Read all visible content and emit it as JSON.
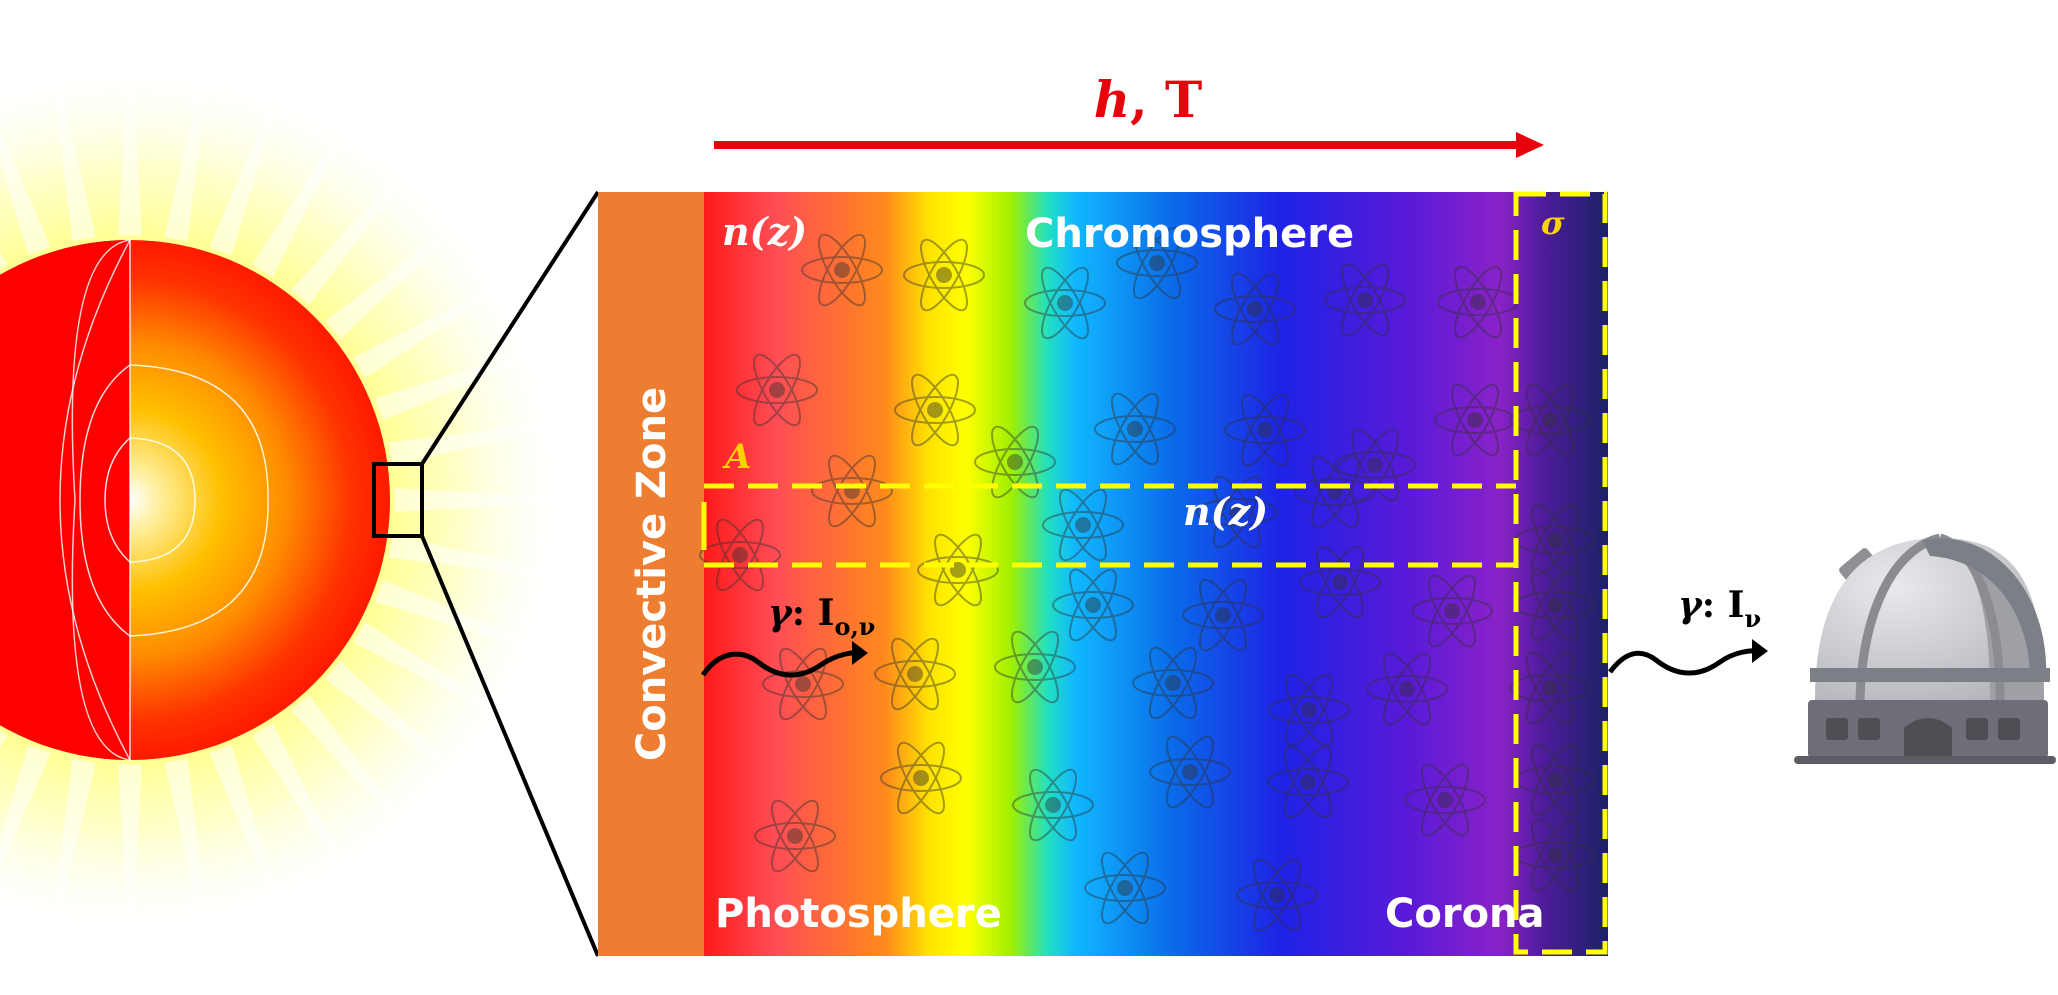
{
  "arrow_label": {
    "h": "h",
    "sep": ", ",
    "T": "T"
  },
  "layers": {
    "convective_zone": "Convective Zone",
    "photosphere": "Photosphere",
    "chromosphere": "Chromosphere",
    "corona": "Corona"
  },
  "symbols": {
    "density_top": "n(z)",
    "density_column": "n(z)",
    "area": "A",
    "cross_section": "σ"
  },
  "photon_in": {
    "gamma": "γ",
    "colon": ": ",
    "I": "I",
    "sub": "o,ν"
  },
  "photon_out": {
    "gamma": "γ",
    "colon": ": ",
    "I": "I",
    "sub": "ν"
  },
  "colors": {
    "arrow_red": "#e8000b",
    "convective_orange": "#ed7d31",
    "dash_yellow": "#ffff00",
    "label_yellow": "#ffd200",
    "corona_navy": "#1c2466"
  },
  "icons": [
    "sun-icon",
    "atom-icon",
    "photon-wave-icon",
    "observatory-icon"
  ]
}
